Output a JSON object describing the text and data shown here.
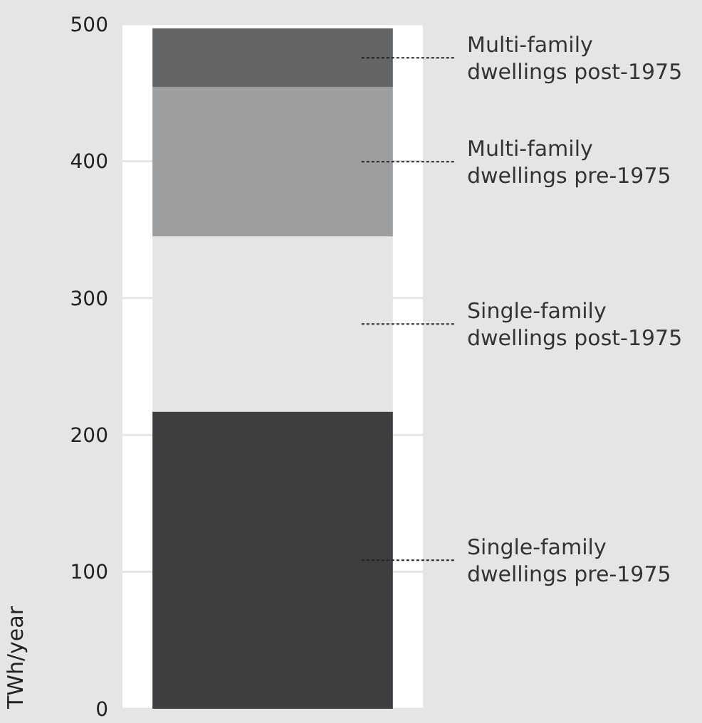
{
  "chart_data": {
    "type": "bar",
    "stacked": true,
    "ylabel": "TWh/year",
    "categories": [
      null
    ],
    "series": [
      {
        "name": "Single-family dwellings pre-1975",
        "color": "#3e3e40",
        "values": [
          217
        ]
      },
      {
        "name": "Single-family dwellings post-1975",
        "color": "#e6e6e6",
        "values": [
          128
        ]
      },
      {
        "name": "Multi-family dwellings pre-1975",
        "color": "#9d9ea0",
        "values": [
          109
        ]
      },
      {
        "name": "Multi-family dwellings post-1975",
        "color": "#646567",
        "values": [
          43
        ]
      }
    ],
    "ylim": [
      0,
      500
    ],
    "yticks": [
      0,
      100,
      200,
      300,
      400,
      500
    ],
    "grid": "y",
    "legend": "right"
  }
}
